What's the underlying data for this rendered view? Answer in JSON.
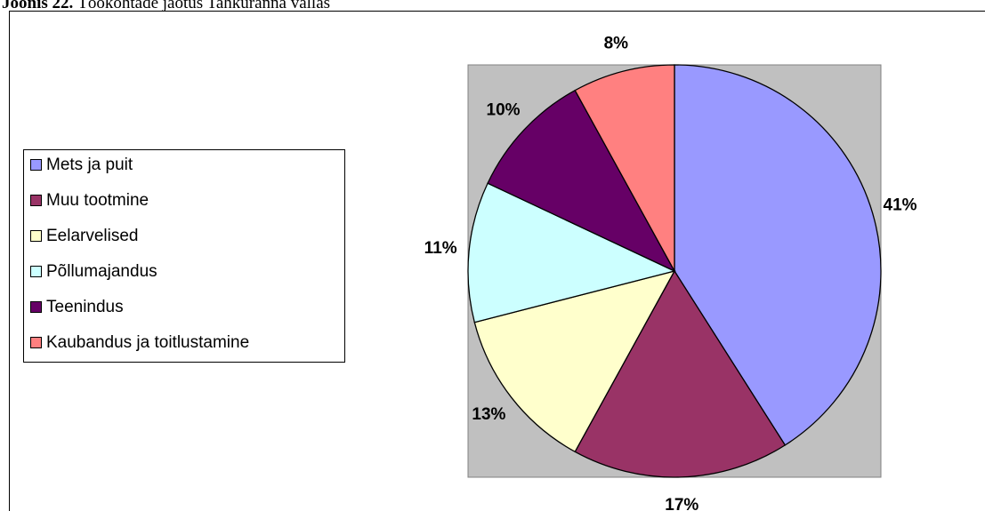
{
  "chart_data": {
    "type": "pie",
    "title_label": "Joonis 22.",
    "title": "Töökohtade jaotus Tahkuranna vallas",
    "categories": [
      "Mets ja puit",
      "Muu tootmine",
      "Eelarvelised",
      "Põllumajandus",
      "Teenindus",
      "Kaubandus ja toitlustamine"
    ],
    "values": [
      41,
      17,
      13,
      11,
      10,
      8
    ],
    "value_labels": [
      "41%",
      "17%",
      "13%",
      "11%",
      "10%",
      "8%"
    ],
    "colors": [
      "#9999ff",
      "#993366",
      "#ffffcc",
      "#ccffff",
      "#660066",
      "#ff8080"
    ],
    "legend": "left"
  }
}
